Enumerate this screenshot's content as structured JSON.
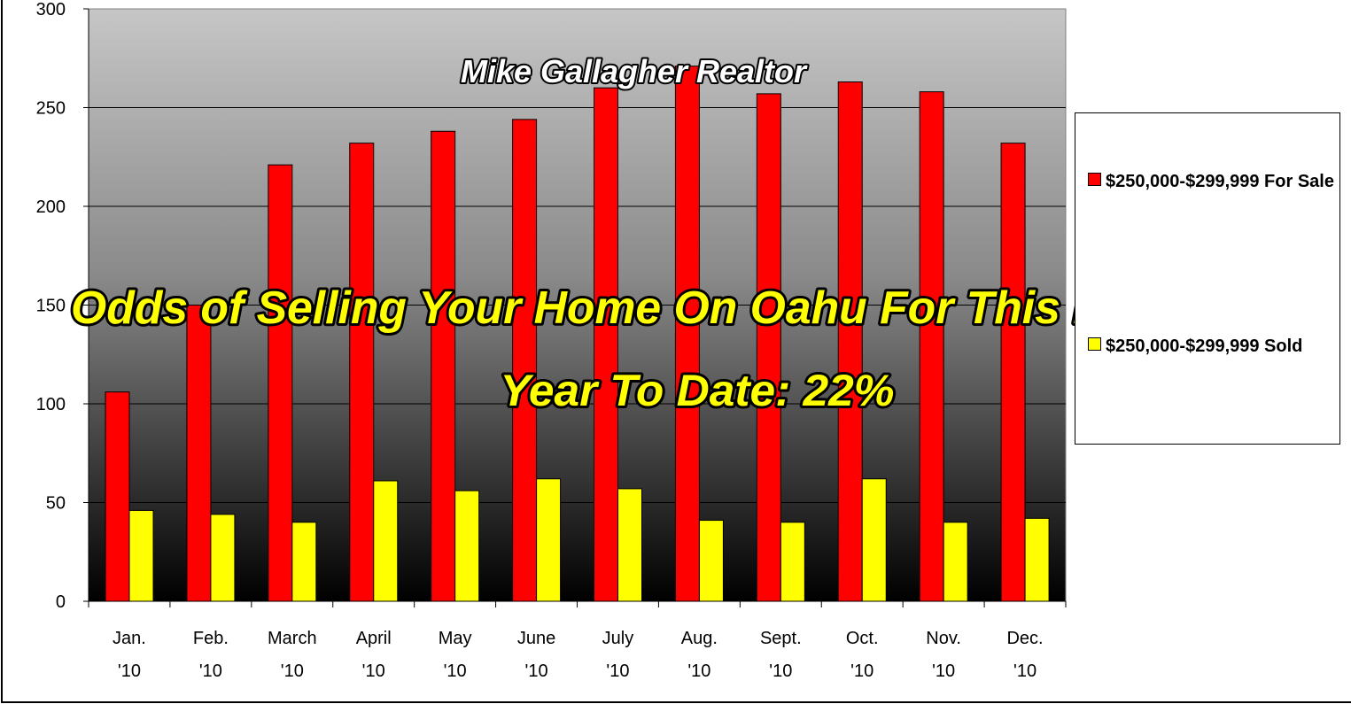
{
  "chart_data": {
    "type": "bar",
    "title": "Odds of Selling Your Home On Oahu For This Price Range",
    "subtitle": "Year To Date: 22%",
    "annotations": [
      "Mike Gallagher Realtor"
    ],
    "categories": [
      [
        "Jan.",
        "'10"
      ],
      [
        "Feb.",
        "'10"
      ],
      [
        "March",
        "'10"
      ],
      [
        "April",
        "'10"
      ],
      [
        "May",
        "'10"
      ],
      [
        "June",
        "'10"
      ],
      [
        "July",
        "'10"
      ],
      [
        "Aug.",
        "'10"
      ],
      [
        "Sept.",
        "'10"
      ],
      [
        "Oct.",
        "'10"
      ],
      [
        "Nov.",
        "'10"
      ],
      [
        "Dec.",
        "'10"
      ]
    ],
    "series": [
      {
        "name": "$250,000-$299,999 For Sale",
        "color": "#ff0000",
        "values": [
          106,
          150,
          221,
          232,
          238,
          244,
          260,
          271,
          257,
          263,
          258,
          232
        ]
      },
      {
        "name": "$250,000-$299,999 Sold",
        "color": "#ffff00",
        "values": [
          46,
          44,
          40,
          61,
          56,
          62,
          57,
          41,
          40,
          62,
          40,
          42
        ]
      }
    ],
    "ylim": [
      0,
      300
    ],
    "yticks": [
      0,
      50,
      100,
      150,
      200,
      250,
      300
    ],
    "grid": true,
    "legend": "right"
  }
}
